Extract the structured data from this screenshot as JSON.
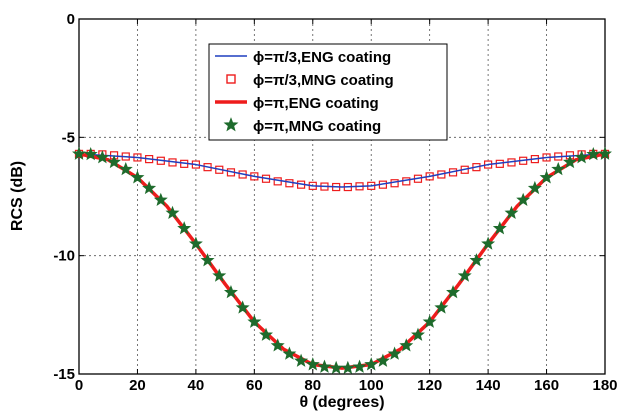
{
  "chart_data": {
    "type": "line",
    "xlabel": "θ (degrees)",
    "ylabel": "RCS (dB)",
    "xlim": [
      0,
      180
    ],
    "ylim": [
      -15,
      0
    ],
    "xticks": [
      0,
      20,
      40,
      60,
      80,
      100,
      120,
      140,
      160,
      180
    ],
    "yticks": [
      0,
      -5,
      -10,
      -15
    ],
    "xtick_labels": [
      "0",
      "20",
      "40",
      "60",
      "80",
      "100",
      "120",
      "140",
      "160",
      "180"
    ],
    "ytick_labels": [
      "0",
      "-5",
      "-10",
      "-15"
    ],
    "grid": "dotted",
    "legend_position": "top-center",
    "series": [
      {
        "name": "ϕ=π/3,ENG coating",
        "style": "line",
        "color": "#1f3fbf",
        "x": [
          0,
          20,
          40,
          60,
          80,
          90,
          100,
          120,
          140,
          160,
          180
        ],
        "y": [
          -5.7,
          -5.85,
          -6.15,
          -6.65,
          -7.05,
          -7.1,
          -7.05,
          -6.65,
          -6.15,
          -5.85,
          -5.7
        ]
      },
      {
        "name": "ϕ=π/3,MNG coating",
        "style": "square-markers",
        "color": "#ee1c1c",
        "x": [
          0,
          4,
          8,
          12,
          16,
          20,
          24,
          28,
          32,
          36,
          40,
          44,
          48,
          52,
          56,
          60,
          64,
          68,
          72,
          76,
          80,
          84,
          88,
          92,
          96,
          100,
          104,
          108,
          112,
          116,
          120,
          124,
          128,
          132,
          136,
          140,
          144,
          148,
          152,
          156,
          160,
          164,
          168,
          172,
          176,
          180
        ],
        "y": [
          -5.7,
          -5.7,
          -5.72,
          -5.76,
          -5.81,
          -5.85,
          -5.92,
          -5.99,
          -6.06,
          -6.12,
          -6.15,
          -6.26,
          -6.37,
          -6.48,
          -6.57,
          -6.65,
          -6.75,
          -6.86,
          -6.94,
          -7.0,
          -7.05,
          -7.08,
          -7.1,
          -7.1,
          -7.07,
          -7.05,
          -7.0,
          -6.94,
          -6.86,
          -6.75,
          -6.65,
          -6.57,
          -6.48,
          -6.37,
          -6.26,
          -6.15,
          -6.12,
          -6.06,
          -5.99,
          -5.92,
          -5.85,
          -5.81,
          -5.76,
          -5.72,
          -5.7,
          -5.7
        ]
      },
      {
        "name": "ϕ=π,ENG coating",
        "style": "line",
        "color": "#ee1c1c",
        "x": [
          0,
          10,
          20,
          30,
          40,
          50,
          60,
          70,
          80,
          90,
          100,
          110,
          120,
          130,
          140,
          150,
          160,
          170,
          180
        ],
        "y": [
          -5.7,
          -5.95,
          -6.7,
          -7.9,
          -9.5,
          -11.2,
          -12.8,
          -13.95,
          -14.6,
          -14.75,
          -14.6,
          -13.95,
          -12.8,
          -11.2,
          -9.5,
          -7.9,
          -6.7,
          -5.95,
          -5.7
        ]
      },
      {
        "name": "ϕ=π,MNG coating",
        "style": "star-markers",
        "color": "#1e6b2c",
        "x": [
          0,
          4,
          8,
          12,
          16,
          20,
          24,
          28,
          32,
          36,
          40,
          44,
          48,
          52,
          56,
          60,
          64,
          68,
          72,
          76,
          80,
          84,
          88,
          92,
          96,
          100,
          104,
          108,
          112,
          116,
          120,
          124,
          128,
          132,
          136,
          140,
          144,
          148,
          152,
          156,
          160,
          164,
          168,
          172,
          176,
          180
        ],
        "y": [
          -5.7,
          -5.72,
          -5.85,
          -6.05,
          -6.35,
          -6.7,
          -7.15,
          -7.65,
          -8.2,
          -8.85,
          -9.5,
          -10.2,
          -10.85,
          -11.55,
          -12.2,
          -12.8,
          -13.35,
          -13.8,
          -14.15,
          -14.45,
          -14.6,
          -14.7,
          -14.75,
          -14.75,
          -14.7,
          -14.6,
          -14.45,
          -14.15,
          -13.8,
          -13.35,
          -12.8,
          -12.2,
          -11.55,
          -10.85,
          -10.2,
          -9.5,
          -8.85,
          -8.2,
          -7.65,
          -7.15,
          -6.7,
          -6.35,
          -6.05,
          -5.85,
          -5.72,
          -5.7
        ]
      }
    ]
  }
}
